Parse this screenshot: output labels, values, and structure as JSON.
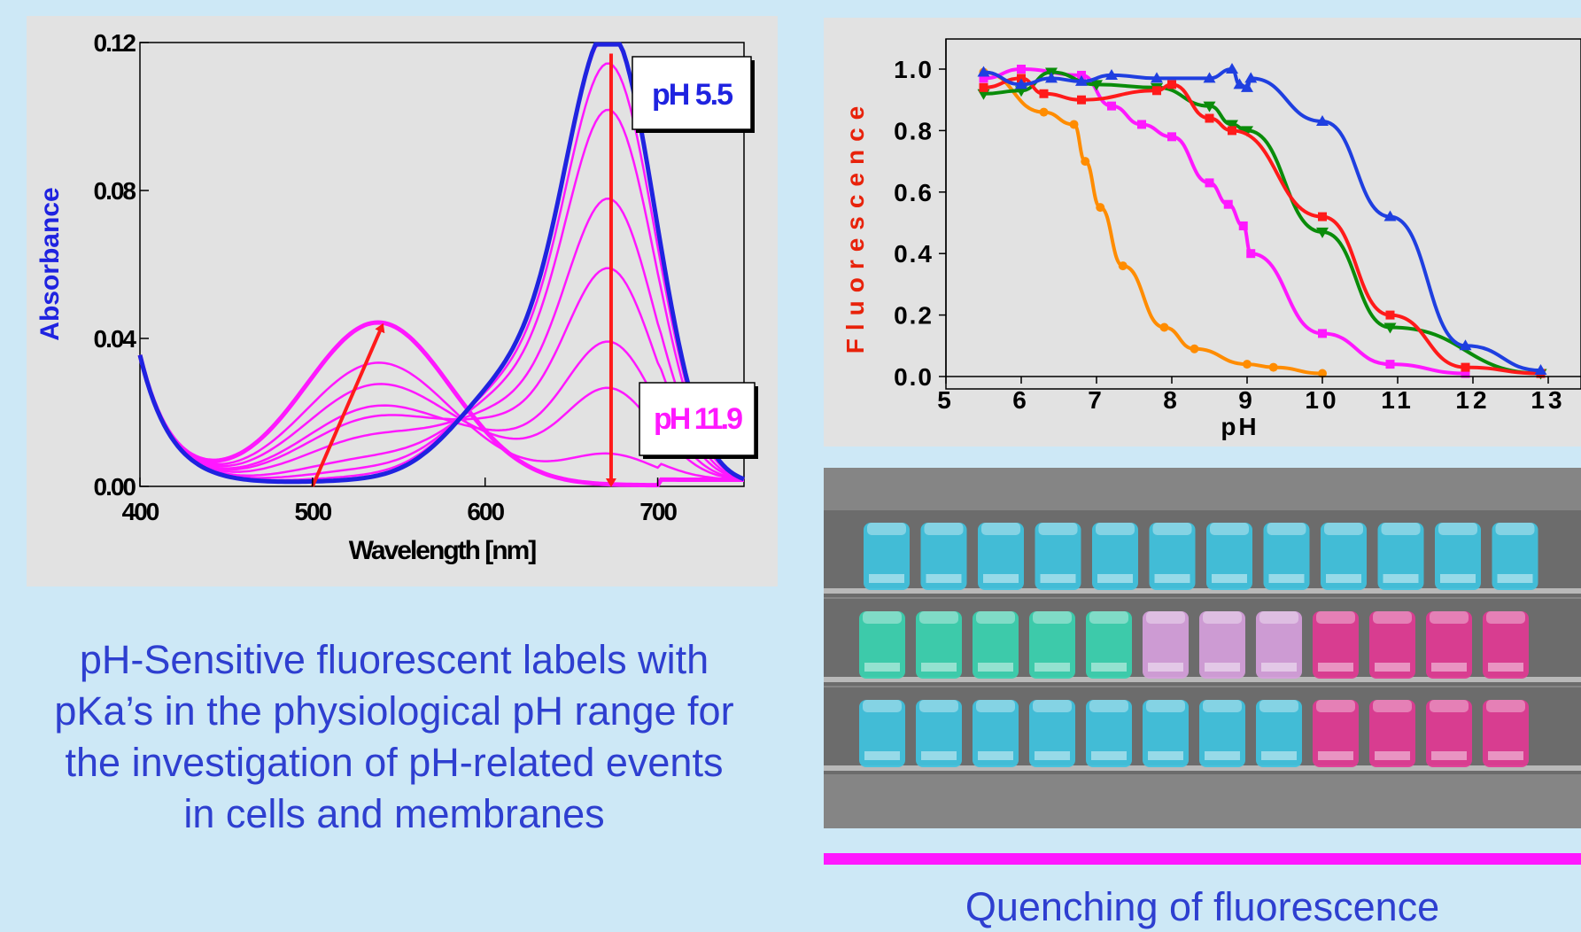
{
  "caption_lines": [
    "pH-Sensitive fluorescent labels with",
    "pKa’s in the physiological pH range for",
    "the investigation of pH-related events",
    "in cells and membranes"
  ],
  "quench_label": "Quenching of fluorescence",
  "colors": {
    "background": "#cde8f6",
    "text_blue": "#2e3fd0",
    "abs_start": "#1f23e0",
    "abs_series": "#ff18ff",
    "arrow": "#ff1a1a",
    "quench_bar": "#ff18ff",
    "cuvette_blue": "#3fc3e0",
    "cuvette_green": "#3ad3b0",
    "cuvette_violet": "#d6a0dc",
    "cuvette_pink": "#e23a94"
  },
  "photo": {
    "rows": [
      [
        "blue",
        "blue",
        "blue",
        "blue",
        "blue",
        "blue",
        "blue",
        "blue",
        "blue",
        "blue",
        "blue",
        "blue"
      ],
      [
        "green",
        "green",
        "green",
        "green",
        "green",
        "violet",
        "violet",
        "violet",
        "pink",
        "pink",
        "pink",
        "pink"
      ],
      [
        "blue",
        "blue",
        "blue",
        "blue",
        "blue",
        "blue",
        "blue",
        "blue",
        "pink",
        "pink",
        "pink",
        "pink"
      ]
    ]
  },
  "chart_data": [
    {
      "type": "line",
      "xlabel": "Wavelength [nm]",
      "ylabel": "Absorbance",
      "xlim": [
        400,
        750
      ],
      "ylim": [
        0,
        0.12
      ],
      "xticks": [
        "400",
        "500",
        "600",
        "700"
      ],
      "yticks": [
        "0.00",
        "0.04",
        "0.08",
        "0.12"
      ],
      "annotations": [
        "pH 5.5",
        "pH 11.9"
      ],
      "grid": false,
      "series": [
        {
          "peak_670": 0.118,
          "peak_540": 0.001,
          "color": "blue"
        },
        {
          "peak_670": 0.117,
          "peak_540": 0.002,
          "color": "magenta"
        },
        {
          "peak_670": 0.109,
          "peak_540": 0.004,
          "color": "magenta"
        },
        {
          "peak_670": 0.097,
          "peak_540": 0.007,
          "color": "magenta"
        },
        {
          "peak_670": 0.074,
          "peak_540": 0.013,
          "color": "magenta"
        },
        {
          "peak_670": 0.056,
          "peak_540": 0.018,
          "color": "magenta"
        },
        {
          "peak_670": 0.037,
          "peak_540": 0.021,
          "color": "magenta"
        },
        {
          "peak_670": 0.025,
          "peak_540": 0.027,
          "color": "magenta"
        },
        {
          "peak_670": 0.008,
          "peak_540": 0.033,
          "color": "magenta"
        },
        {
          "peak_670": 0.0,
          "peak_540": 0.044,
          "color": "magenta"
        }
      ],
      "arrows": [
        {
          "from": [
            500,
            0.0
          ],
          "to": [
            540,
            0.044
          ]
        },
        {
          "from": [
            673,
            0.117
          ],
          "to": [
            673,
            0.0
          ]
        }
      ]
    },
    {
      "type": "line",
      "xlabel": "pH",
      "ylabel": "Fluorescence",
      "xlim": [
        5,
        13
      ],
      "ylim": [
        0,
        1.0
      ],
      "xticks": [
        "5",
        "6",
        "7",
        "8",
        "9",
        "10",
        "11",
        "12",
        "13"
      ],
      "yticks": [
        "0.0",
        "0.2",
        "0.4",
        "0.6",
        "0.8",
        "1.0"
      ],
      "grid": false,
      "series": [
        {
          "color": "#ff8c00",
          "marker": "circle",
          "x": [
            5.5,
            6.3,
            6.7,
            6.85,
            7.05,
            7.35,
            7.9,
            8.3,
            9.0,
            9.35,
            10.0
          ],
          "y": [
            0.99,
            0.86,
            0.82,
            0.7,
            0.55,
            0.36,
            0.16,
            0.09,
            0.04,
            0.03,
            0.01
          ]
        },
        {
          "color": "#ff18ff",
          "marker": "square",
          "x": [
            5.5,
            6.0,
            6.8,
            7.2,
            7.6,
            8.0,
            8.5,
            8.75,
            8.95,
            9.05,
            10.0,
            10.9,
            11.9
          ],
          "y": [
            0.97,
            1.0,
            0.98,
            0.88,
            0.82,
            0.78,
            0.63,
            0.56,
            0.49,
            0.4,
            0.14,
            0.04,
            0.01
          ]
        },
        {
          "color": "#0a8c0a",
          "marker": "triangle-down",
          "x": [
            5.5,
            6.0,
            6.4,
            7.0,
            7.8,
            8.5,
            8.8,
            9.0,
            10.0,
            10.9,
            12.9
          ],
          "y": [
            0.92,
            0.93,
            0.99,
            0.95,
            0.94,
            0.88,
            0.82,
            0.8,
            0.47,
            0.16,
            0.01
          ]
        },
        {
          "color": "#ff1a1a",
          "marker": "square",
          "x": [
            5.5,
            6.0,
            6.3,
            6.8,
            7.8,
            8.0,
            8.5,
            8.8,
            10.0,
            10.9,
            11.9,
            12.9
          ],
          "y": [
            0.94,
            0.97,
            0.92,
            0.9,
            0.93,
            0.95,
            0.84,
            0.8,
            0.52,
            0.2,
            0.03,
            0.01
          ]
        },
        {
          "color": "#1f3fe0",
          "marker": "triangle-up",
          "x": [
            5.5,
            6.0,
            6.4,
            6.8,
            7.2,
            7.8,
            8.5,
            8.8,
            8.9,
            9.0,
            9.05,
            10.0,
            10.9,
            11.9,
            12.9
          ],
          "y": [
            0.99,
            0.95,
            0.97,
            0.96,
            0.98,
            0.97,
            0.97,
            1.0,
            0.95,
            0.94,
            0.97,
            0.83,
            0.52,
            0.1,
            0.02
          ]
        }
      ]
    }
  ]
}
